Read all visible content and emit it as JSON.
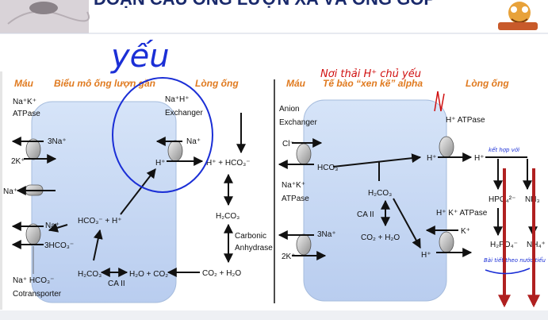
{
  "title": "ĐOẠN CẦU ỐNG LƯỢN XA VÀ ỐNG GÓP",
  "left_panel": {
    "labels": {
      "mau": "Máu",
      "bieu_mo": "Biểu mô ống lượn gần",
      "long_ong": "Lòng ống"
    },
    "transporters": {
      "nak_atpase_line1": "Na⁺K⁺",
      "nak_atpase_line2": "ATPase",
      "na_3": "3Na⁺",
      "k_2": "2K⁺",
      "na_channel": "Na⁺",
      "na_cotrans": "Na⁺",
      "hco3_3": "3HCO₃⁻",
      "cotrans_line1": "Na⁺ HCO₃⁻",
      "cotrans_line2": "Cotransporter",
      "nh_exchanger_line1": "Na⁺H⁺",
      "nh_exchanger_line2": "Exchanger",
      "na_ex": "Na⁺",
      "h_ex": "H⁺"
    },
    "reactions": {
      "hco3_h": "HCO₃⁻  +  H⁺",
      "h2co3": "H₂CO₃",
      "ca2": "CA II",
      "h2o_co2": "H₂O  + CO₂"
    },
    "lumen": {
      "h_hco3": "H⁺  +  HCO₃⁻",
      "h2co3": "H₂CO₃",
      "carbonic_1": "Carbonic",
      "carbonic_2": "Anhydrase",
      "co2_h2o": "CO₂   +  H₂O"
    }
  },
  "right_panel": {
    "labels": {
      "mau": "Máu",
      "te_bao": "Tế bào “xen kẽ” alpha",
      "long_ong": "Lòng ống"
    },
    "transporters": {
      "anion_line1": "Anion",
      "anion_line2": "Exchanger",
      "cl": "Cl⁻",
      "hco3": "HCO₃⁻",
      "nak_line1": "Na⁺K⁺",
      "nak_line2": "ATPase",
      "na_3": "3Na⁺",
      "k_2": "2K⁺",
      "h_atpase": "H⁺ ATPase",
      "h_cell": "H⁺",
      "h_lumen": "H⁺",
      "hk_atpase": "H⁺ K⁺ ATPase",
      "k": "K⁺",
      "h_cell2": "H⁺"
    },
    "reactions": {
      "h2co3": "H₂CO₃",
      "ca2": "CA II",
      "co2_h2o": "CO₂  + H₂O"
    },
    "lumen": {
      "hpo4": "HPO₄²⁻",
      "nh3": "NH₃",
      "h2po4": "H₂PO₄⁻",
      "nh4": "NH₄⁺"
    }
  },
  "annotations": {
    "yeu": "yếu",
    "noi_thai": "Nơi thải H⁺ chủ yếu",
    "ket_hop": "kết hợp với",
    "bai_tiet": "Bài tiết theo nước tiểu"
  },
  "colors": {
    "cell_fill": "#c9daf4",
    "cell_stroke": "#9fb6d9",
    "label_orange": "#e07a1f",
    "ink_blue": "#1b2fd6",
    "ink_red": "#d01010",
    "arrow_red": "#b02020"
  }
}
